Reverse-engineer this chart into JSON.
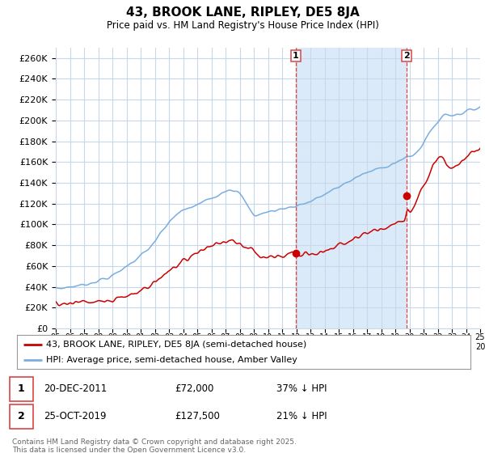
{
  "title": "43, BROOK LANE, RIPLEY, DE5 8JA",
  "subtitle": "Price paid vs. HM Land Registry's House Price Index (HPI)",
  "ylabel_ticks": [
    "£0",
    "£20K",
    "£40K",
    "£60K",
    "£80K",
    "£100K",
    "£120K",
    "£140K",
    "£160K",
    "£180K",
    "£200K",
    "£220K",
    "£240K",
    "£260K"
  ],
  "ytick_values": [
    0,
    20000,
    40000,
    60000,
    80000,
    100000,
    120000,
    140000,
    160000,
    180000,
    200000,
    220000,
    240000,
    260000
  ],
  "ymax": 270000,
  "legend_line1": "43, BROOK LANE, RIPLEY, DE5 8JA (semi-detached house)",
  "legend_line2": "HPI: Average price, semi-detached house, Amber Valley",
  "sale1_date": "20-DEC-2011",
  "sale1_price": "£72,000",
  "sale1_note": "37% ↓ HPI",
  "sale2_date": "25-OCT-2019",
  "sale2_price": "£127,500",
  "sale2_note": "21% ↓ HPI",
  "footer": "Contains HM Land Registry data © Crown copyright and database right 2025.\nThis data is licensed under the Open Government Licence v3.0.",
  "red_color": "#cc0000",
  "blue_color": "#7aade0",
  "vline_color": "#dd4444",
  "bg_color": "#daeaf8",
  "plot_bg": "#ffffff",
  "grid_color": "#c8d8e8",
  "x_start_year": 1995,
  "x_end_year": 2026,
  "sale1_year": 2011.97,
  "sale2_year": 2019.81,
  "sale1_price_val": 72000,
  "sale2_price_val": 127500
}
